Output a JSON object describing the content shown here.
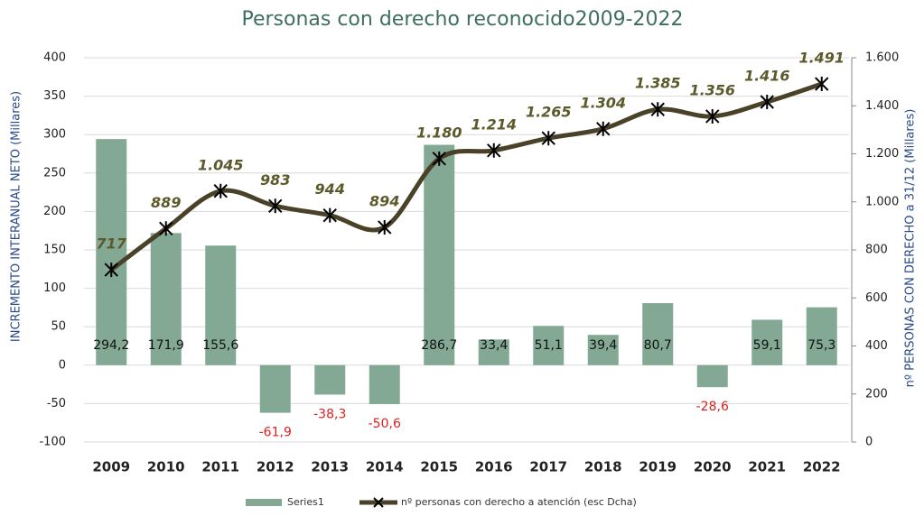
{
  "chart_data": {
    "type": "bar_line",
    "title": "Personas con derecho reconocido2009-2022",
    "y_label": "INCREMENTO INTERANUAL NETO (Millares)",
    "y2_label": "nº PERSONAS CON DERECHO a 31/12 (Millares)",
    "categories": [
      "2009",
      "2010",
      "2011",
      "2012",
      "2013",
      "2014",
      "2015",
      "2016",
      "2017",
      "2018",
      "2019",
      "2020",
      "2021",
      "2022"
    ],
    "series": [
      {
        "name": "Series1",
        "type": "bar",
        "color": "#83a995",
        "values": [
          294.2,
          171.9,
          155.6,
          -61.9,
          -38.3,
          -50.6,
          286.7,
          33.4,
          51.1,
          39.4,
          80.7,
          -28.6,
          59.1,
          75.3
        ],
        "value_labels": [
          "294,2",
          "171,9",
          "155,6",
          "-61,9",
          "-38,3",
          "-50,6",
          "286,7",
          "33,4",
          "51,1",
          "39,4",
          "80,7",
          "-28,6",
          "59,1",
          "75,3"
        ]
      },
      {
        "name": "nº personas con derecho a atención (esc Dcha)",
        "type": "line",
        "axis": "y2",
        "color": "#4a4228",
        "values": [
          717,
          889,
          1045,
          983,
          944,
          894,
          1180,
          1214,
          1265,
          1304,
          1385,
          1356,
          1416,
          1491
        ],
        "value_labels": [
          "717",
          "889",
          "1.045",
          "983",
          "944",
          "894",
          "1.180",
          "1.214",
          "1.265",
          "1.304",
          "1.385",
          "1.356",
          "1.416",
          "1.491"
        ]
      }
    ],
    "negative_label_color": "#e02020",
    "ylim": [
      -100,
      400
    ],
    "yticks": [
      -100,
      -50,
      0,
      50,
      100,
      150,
      200,
      250,
      300,
      350,
      400
    ],
    "y2lim": [
      0,
      1600
    ],
    "y2ticks": [
      0,
      200,
      400,
      600,
      800,
      {
        "value": 1000,
        "label": "1.000"
      },
      {
        "value": 1200,
        "label": "1.200"
      },
      {
        "value": 1400,
        "label": "1.400"
      },
      {
        "value": 1600,
        "label": "1.600"
      }
    ],
    "grid": true,
    "legend": "bottom"
  }
}
